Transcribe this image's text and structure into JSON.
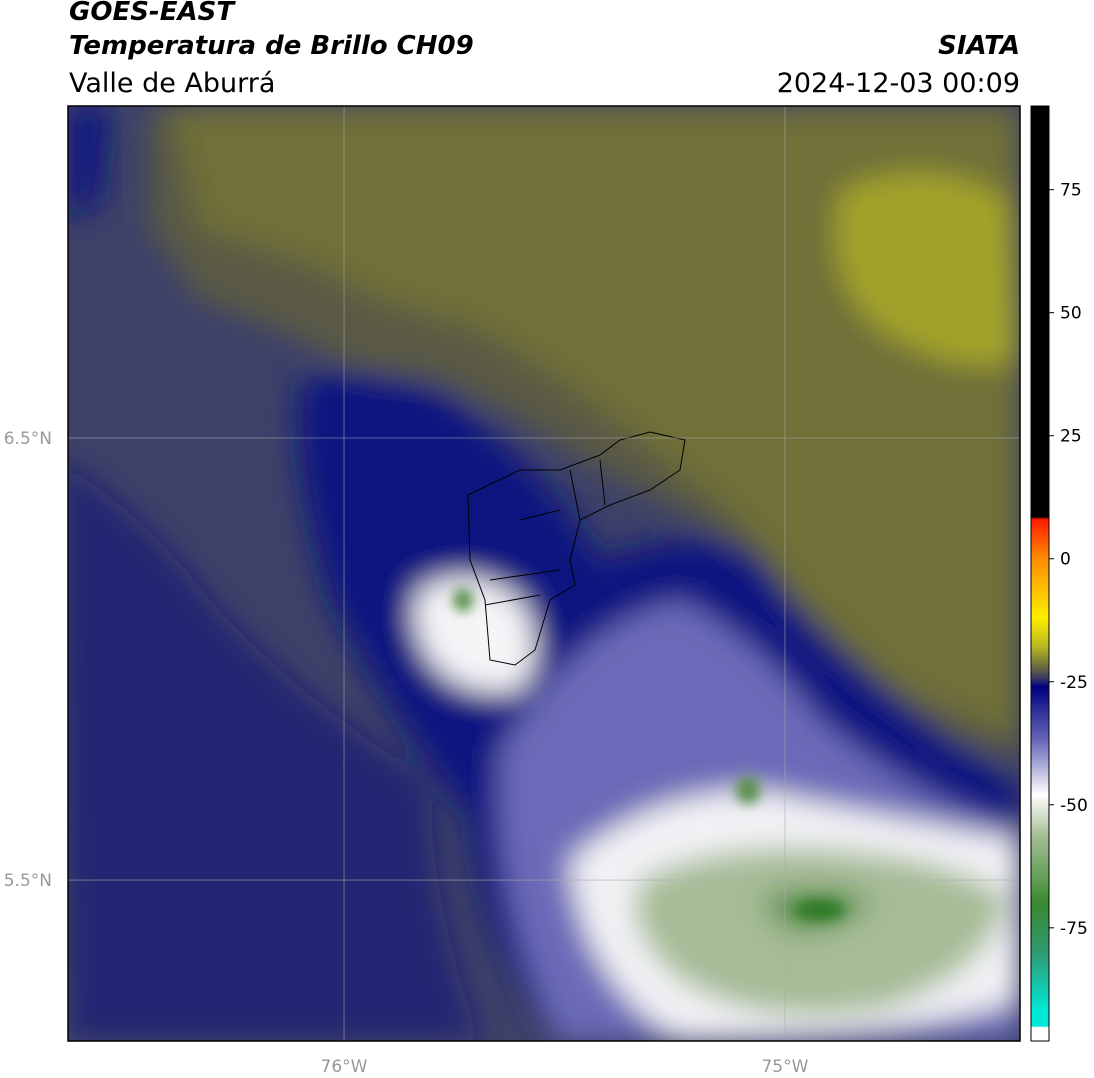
{
  "chart_data": {
    "type": "map",
    "title": "GOES-EAST",
    "subtitle": "Temperatura de Brillo CH09",
    "region": "Valle de Aburrá",
    "source": "SIATA",
    "datetime": "2024-12-03 00:09",
    "xlim": [
      -76.626,
      -74.467
    ],
    "ylim": [
      5.136,
      7.251
    ],
    "xticks": [
      {
        "value": -76,
        "label": "76°W"
      },
      {
        "value": -75,
        "label": "75°W"
      }
    ],
    "yticks": [
      {
        "value": 5.5,
        "label": "5.5°N"
      },
      {
        "value": 6.5,
        "label": "6.5°N"
      }
    ],
    "grid": true,
    "colorbar": {
      "lim": [
        -98,
        92
      ],
      "ticks": [
        -75,
        -50,
        -25,
        0,
        25,
        50,
        75
      ],
      "stops": [
        {
          "value": 92,
          "color": "#000000"
        },
        {
          "value": 8.5,
          "color": "#000000"
        },
        {
          "value": 8,
          "color": "#ff1a00"
        },
        {
          "value": 0,
          "color": "#ff8c00"
        },
        {
          "value": -12,
          "color": "#ffee00"
        },
        {
          "value": -18,
          "color": "#b5b520"
        },
        {
          "value": -22,
          "color": "#6b6b40"
        },
        {
          "value": -24,
          "color": "#404060"
        },
        {
          "value": -26,
          "color": "#000080"
        },
        {
          "value": -37,
          "color": "#6868b8"
        },
        {
          "value": -48,
          "color": "#ffffff"
        },
        {
          "value": -56,
          "color": "#a8c098"
        },
        {
          "value": -70,
          "color": "#3a8a30"
        },
        {
          "value": -80,
          "color": "#309a70"
        },
        {
          "value": -92,
          "color": "#00e8d8"
        },
        {
          "value": -95,
          "color": "#00e8d8"
        },
        {
          "value": -95.2,
          "color": "#ffffff"
        },
        {
          "value": -98,
          "color": "#ffffff"
        }
      ]
    }
  }
}
